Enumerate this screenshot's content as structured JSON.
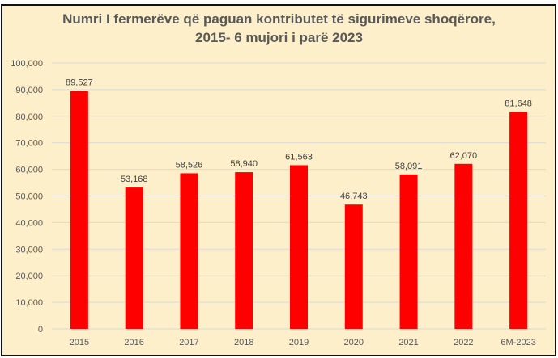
{
  "chart_data": {
    "type": "bar",
    "title": "Numri I fermerëve që paguan kontributet të sigurimeve shoqërore,",
    "subtitle": "2015- 6 mujori i parë 2023",
    "categories": [
      "2015",
      "2016",
      "2017",
      "2018",
      "2019",
      "2020",
      "2021",
      "2022",
      "6M-2023"
    ],
    "values": [
      89527,
      53168,
      58526,
      58940,
      61563,
      46743,
      58091,
      62070,
      81648
    ],
    "labels": [
      "89,527",
      "53,168",
      "58,526",
      "58,940",
      "61,563",
      "46,743",
      "58,091",
      "62,070",
      "81,648"
    ],
    "yticks": [
      "0",
      "10,000",
      "20,000",
      "30,000",
      "40,000",
      "50,000",
      "60,000",
      "70,000",
      "80,000",
      "90,000",
      "100,000"
    ],
    "ylim": [
      0,
      100000
    ],
    "grid": true,
    "bar_color": "#ff0000",
    "xlabel": "",
    "ylabel": ""
  }
}
